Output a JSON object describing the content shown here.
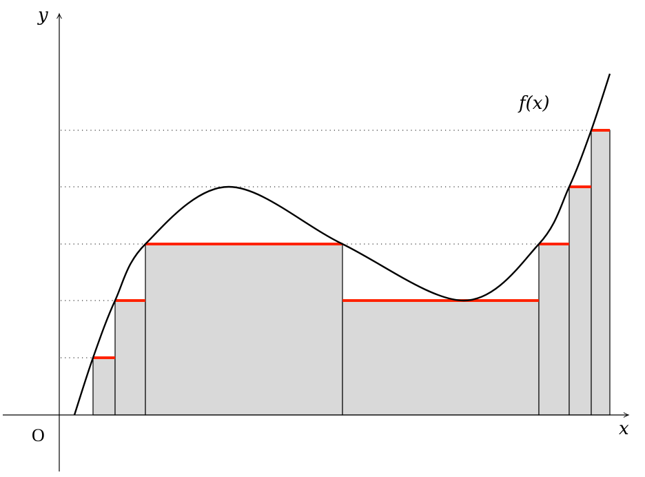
{
  "labels": {
    "y_axis": "y",
    "x_axis": "x",
    "origin": "O",
    "function": "f(x)"
  },
  "colors": {
    "level_line": "#ff2200",
    "bar_fill": "#d9d9d9",
    "curve": "#000000"
  }
}
